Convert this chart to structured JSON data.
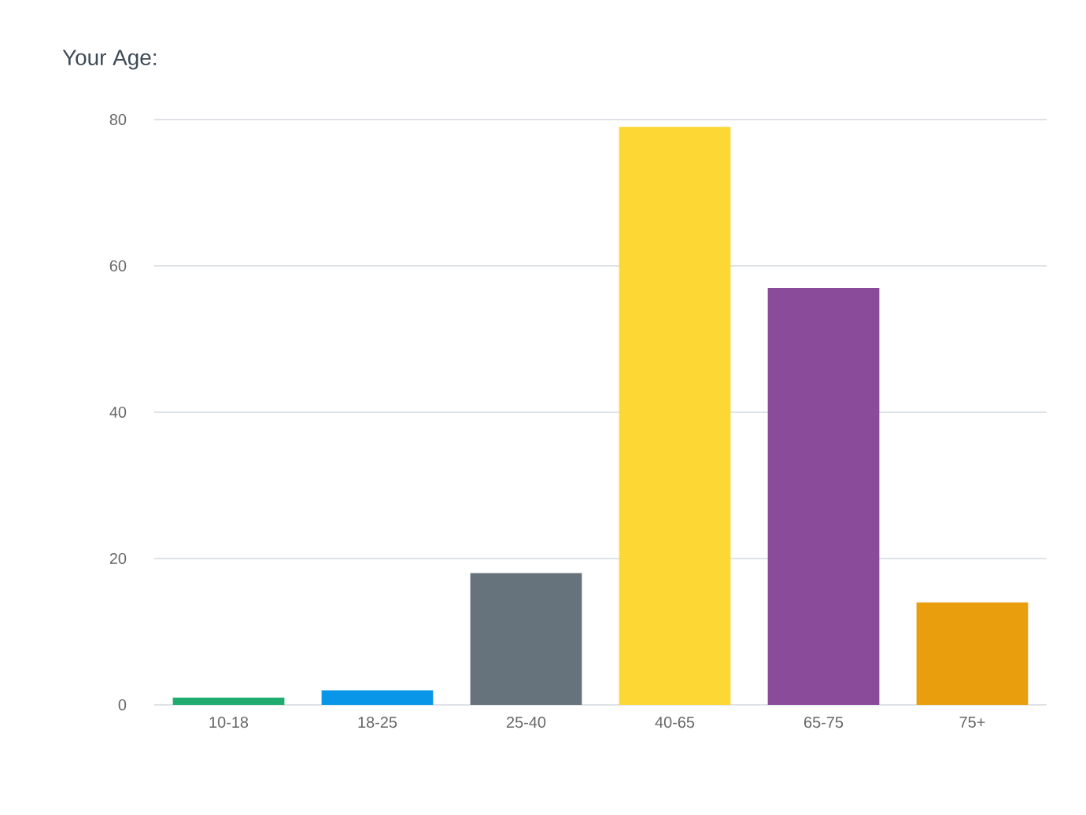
{
  "chart_data": {
    "type": "bar",
    "title": "Your Age:",
    "categories": [
      "10-18",
      "18-25",
      "25-40",
      "40-65",
      "65-75",
      "75+"
    ],
    "values": [
      1,
      2,
      18,
      79,
      57,
      14
    ],
    "colors": [
      "#1fac6e",
      "#0a96e8",
      "#66737c",
      "#fdd835",
      "#8a4b9b",
      "#e99e0d"
    ],
    "ylim": [
      0,
      80
    ],
    "yticks": [
      0,
      20,
      40,
      60,
      80
    ],
    "grid": "y"
  }
}
